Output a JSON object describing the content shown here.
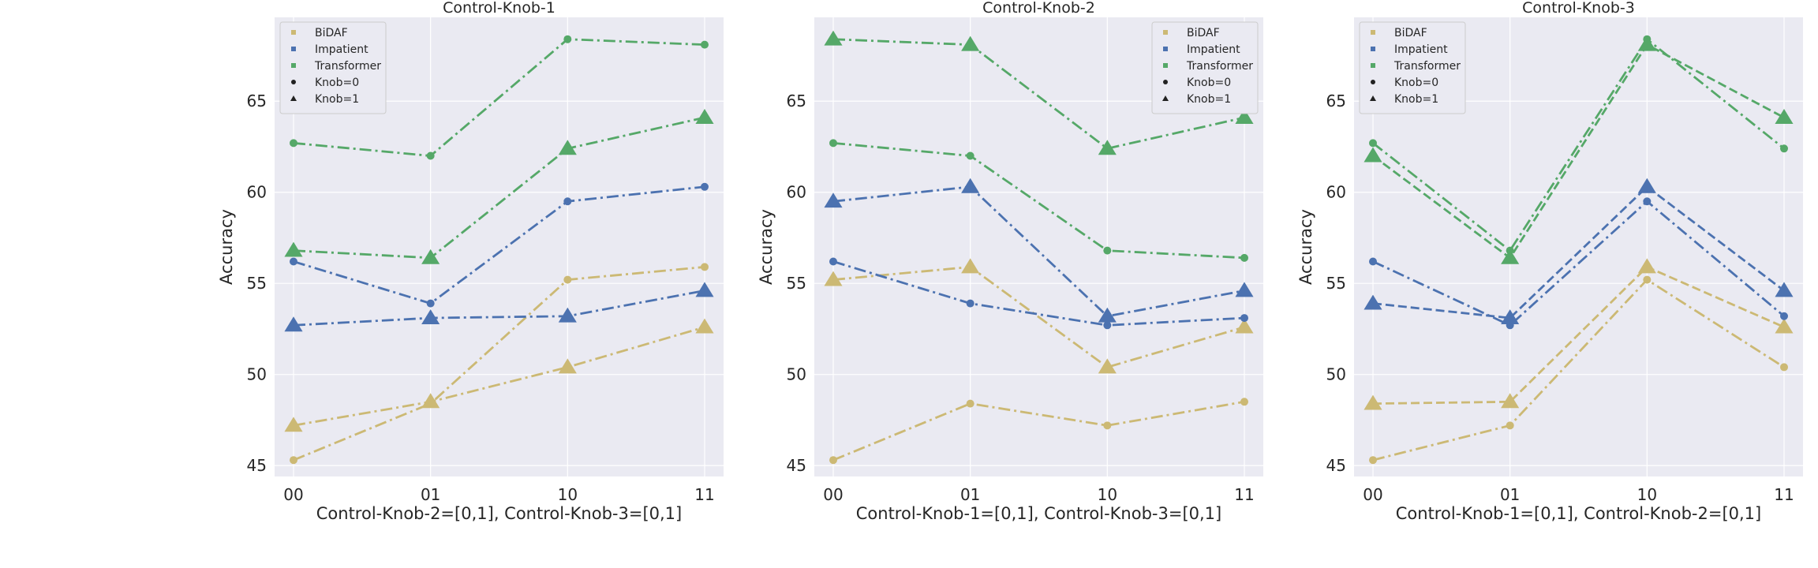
{
  "colors": {
    "BiDAF": "#ccb974",
    "Impatient": "#4c72b0",
    "Transformer": "#55a868",
    "panel_bg": "#eaeaf2",
    "grid": "#ffffff"
  },
  "chart_data": [
    {
      "type": "line",
      "title": "Control-Knob-1",
      "xlabel": "Control-Knob-2=[0,1], Control-Knob-3=[0,1]",
      "ylabel": "Accuracy",
      "categories": [
        "00",
        "01",
        "10",
        "11"
      ],
      "yticks": [
        45,
        50,
        55,
        60,
        65
      ],
      "ylim": [
        44.4,
        69.6
      ],
      "grid": true,
      "legend_position": "upper-left",
      "legend": [
        "BiDAF",
        "Impatient",
        "Transformer",
        "Knob=0",
        "Knob=1"
      ],
      "series": [
        {
          "name": "BiDAF",
          "marker": "Knob=0",
          "linestyle": "dashdot",
          "values": [
            45.3,
            48.4,
            55.2,
            55.9
          ]
        },
        {
          "name": "BiDAF",
          "marker": "Knob=1",
          "linestyle": "dashdot",
          "values": [
            47.2,
            48.5,
            50.4,
            52.6
          ]
        },
        {
          "name": "Impatient",
          "marker": "Knob=0",
          "linestyle": "dashdot",
          "values": [
            56.2,
            53.9,
            59.5,
            60.3
          ]
        },
        {
          "name": "Impatient",
          "marker": "Knob=1",
          "linestyle": "dashdot",
          "values": [
            52.7,
            53.1,
            53.2,
            54.6
          ]
        },
        {
          "name": "Transformer",
          "marker": "Knob=0",
          "linestyle": "dashdot",
          "values": [
            62.7,
            62.0,
            68.4,
            68.1
          ]
        },
        {
          "name": "Transformer",
          "marker": "Knob=1",
          "linestyle": "dashdot",
          "values": [
            56.8,
            56.4,
            62.4,
            64.1
          ]
        }
      ]
    },
    {
      "type": "line",
      "title": "Control-Knob-2",
      "xlabel": "Control-Knob-1=[0,1], Control-Knob-3=[0,1]",
      "ylabel": "Accuracy",
      "categories": [
        "00",
        "01",
        "10",
        "11"
      ],
      "yticks": [
        45,
        50,
        55,
        60,
        65
      ],
      "ylim": [
        44.4,
        69.6
      ],
      "grid": true,
      "legend_position": "upper-right",
      "legend": [
        "BiDAF",
        "Impatient",
        "Transformer",
        "Knob=0",
        "Knob=1"
      ],
      "series": [
        {
          "name": "BiDAF",
          "marker": "Knob=0",
          "linestyle": "dashdot",
          "values": [
            45.3,
            48.4,
            47.2,
            48.5
          ]
        },
        {
          "name": "BiDAF",
          "marker": "Knob=1",
          "linestyle": "dashdot",
          "values": [
            55.2,
            55.9,
            50.4,
            52.6
          ]
        },
        {
          "name": "Impatient",
          "marker": "Knob=0",
          "linestyle": "dashdot",
          "values": [
            56.2,
            53.9,
            52.7,
            53.1
          ]
        },
        {
          "name": "Impatient",
          "marker": "Knob=1",
          "linestyle": "dashdot",
          "values": [
            59.5,
            60.3,
            53.2,
            54.6
          ]
        },
        {
          "name": "Transformer",
          "marker": "Knob=0",
          "linestyle": "dashdot",
          "values": [
            62.7,
            62.0,
            56.8,
            56.4
          ]
        },
        {
          "name": "Transformer",
          "marker": "Knob=1",
          "linestyle": "dashdot",
          "values": [
            68.4,
            68.1,
            62.4,
            64.1
          ]
        }
      ]
    },
    {
      "type": "line",
      "title": "Control-Knob-3",
      "xlabel": "Control-Knob-1=[0,1], Control-Knob-2=[0,1]",
      "ylabel": "Accuracy",
      "categories": [
        "00",
        "01",
        "10",
        "11"
      ],
      "yticks": [
        45,
        50,
        55,
        60,
        65
      ],
      "ylim": [
        44.4,
        69.6
      ],
      "grid": true,
      "legend_position": "upper-left",
      "legend": [
        "BiDAF",
        "Impatient",
        "Transformer",
        "Knob=0",
        "Knob=1"
      ],
      "series": [
        {
          "name": "BiDAF",
          "marker": "Knob=0",
          "linestyle": "dashdot",
          "values": [
            45.3,
            47.2,
            55.2,
            50.4
          ]
        },
        {
          "name": "BiDAF",
          "marker": "Knob=1",
          "linestyle": "dashed",
          "values": [
            48.4,
            48.5,
            55.9,
            52.6
          ]
        },
        {
          "name": "Impatient",
          "marker": "Knob=0",
          "linestyle": "dashdot",
          "values": [
            56.2,
            52.7,
            59.5,
            53.2
          ]
        },
        {
          "name": "Impatient",
          "marker": "Knob=1",
          "linestyle": "dashed",
          "values": [
            53.9,
            53.1,
            60.3,
            54.6
          ]
        },
        {
          "name": "Transformer",
          "marker": "Knob=0",
          "linestyle": "dashdot",
          "values": [
            62.7,
            56.8,
            68.4,
            62.4
          ]
        },
        {
          "name": "Transformer",
          "marker": "Knob=1",
          "linestyle": "dashed",
          "values": [
            62.0,
            56.4,
            68.1,
            64.1
          ]
        }
      ]
    }
  ]
}
